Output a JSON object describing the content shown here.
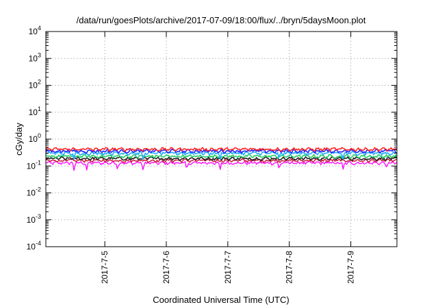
{
  "chart_data": {
    "type": "line",
    "title": "/data/run/goesPlots/archive/2017-07-09/18:00/flux/../bryn/5daysMoon.plot",
    "xlabel": "Coordinated Universal Time (UTC)",
    "ylabel": "cGy/day",
    "y_scale": "log",
    "ylim": [
      0.0001,
      10000
    ],
    "y_ticks": [
      {
        "base": "10",
        "exp": "4",
        "value": 10000
      },
      {
        "base": "10",
        "exp": "3",
        "value": 1000
      },
      {
        "base": "10",
        "exp": "2",
        "value": 100
      },
      {
        "base": "10",
        "exp": "1",
        "value": 10
      },
      {
        "base": "10",
        "exp": "0",
        "value": 1
      },
      {
        "base": "10",
        "exp": "-1",
        "value": 0.1
      },
      {
        "base": "10",
        "exp": "-2",
        "value": 0.01
      },
      {
        "base": "10",
        "exp": "-3",
        "value": 0.001
      },
      {
        "base": "10",
        "exp": "-4",
        "value": 0.0001
      }
    ],
    "xlim": [
      "2017-07-04 01:00",
      "2017-07-09 18:00"
    ],
    "x_ticks": [
      {
        "label": "2017-7-5",
        "date": "2017-07-05 00:00"
      },
      {
        "label": "2017-7-6",
        "date": "2017-07-06 00:00"
      },
      {
        "label": "2017-7-7",
        "date": "2017-07-07 00:00"
      },
      {
        "label": "2017-7-8",
        "date": "2017-07-08 00:00"
      },
      {
        "label": "2017-7-9",
        "date": "2017-07-09 00:00"
      }
    ],
    "grid": true,
    "legend": "none",
    "series": [
      {
        "color": "#ff00ff",
        "base": 0.13,
        "dips": [
          {
            "date": "2017-07-04 12:00",
            "value": 0.065
          },
          {
            "date": "2017-07-04 17:00",
            "value": 0.07
          },
          {
            "date": "2017-07-05 05:00",
            "value": 0.07
          },
          {
            "date": "2017-07-05 15:00",
            "value": 0.065
          },
          {
            "date": "2017-07-06 08:00",
            "value": 0.07
          },
          {
            "date": "2017-07-06 21:00",
            "value": 0.07
          },
          {
            "date": "2017-07-07 20:00",
            "value": 0.075
          },
          {
            "date": "2017-07-08 21:00",
            "value": 0.075
          },
          {
            "date": "2017-07-09 14:00",
            "value": 0.085
          }
        ]
      },
      {
        "color": "#cc2244",
        "base": 0.16,
        "dips": []
      },
      {
        "color": "#222222",
        "base": 0.19,
        "dips": []
      },
      {
        "color": "#22cc66",
        "base": 0.23,
        "dips": []
      },
      {
        "color": "#22aaff",
        "base": 0.3,
        "dips": [
          {
            "date": "2017-07-04 12:00",
            "value": 0.17
          },
          {
            "date": "2017-07-05 15:00",
            "value": 0.16
          },
          {
            "date": "2017-07-06 21:00",
            "value": 0.17
          },
          {
            "date": "2017-07-07 20:00",
            "value": 0.18
          },
          {
            "date": "2017-07-08 21:00",
            "value": 0.18
          }
        ]
      },
      {
        "color": "#2222ff",
        "base": 0.36,
        "dips": []
      },
      {
        "color": "#ff2222",
        "base": 0.42,
        "dips": []
      }
    ]
  }
}
